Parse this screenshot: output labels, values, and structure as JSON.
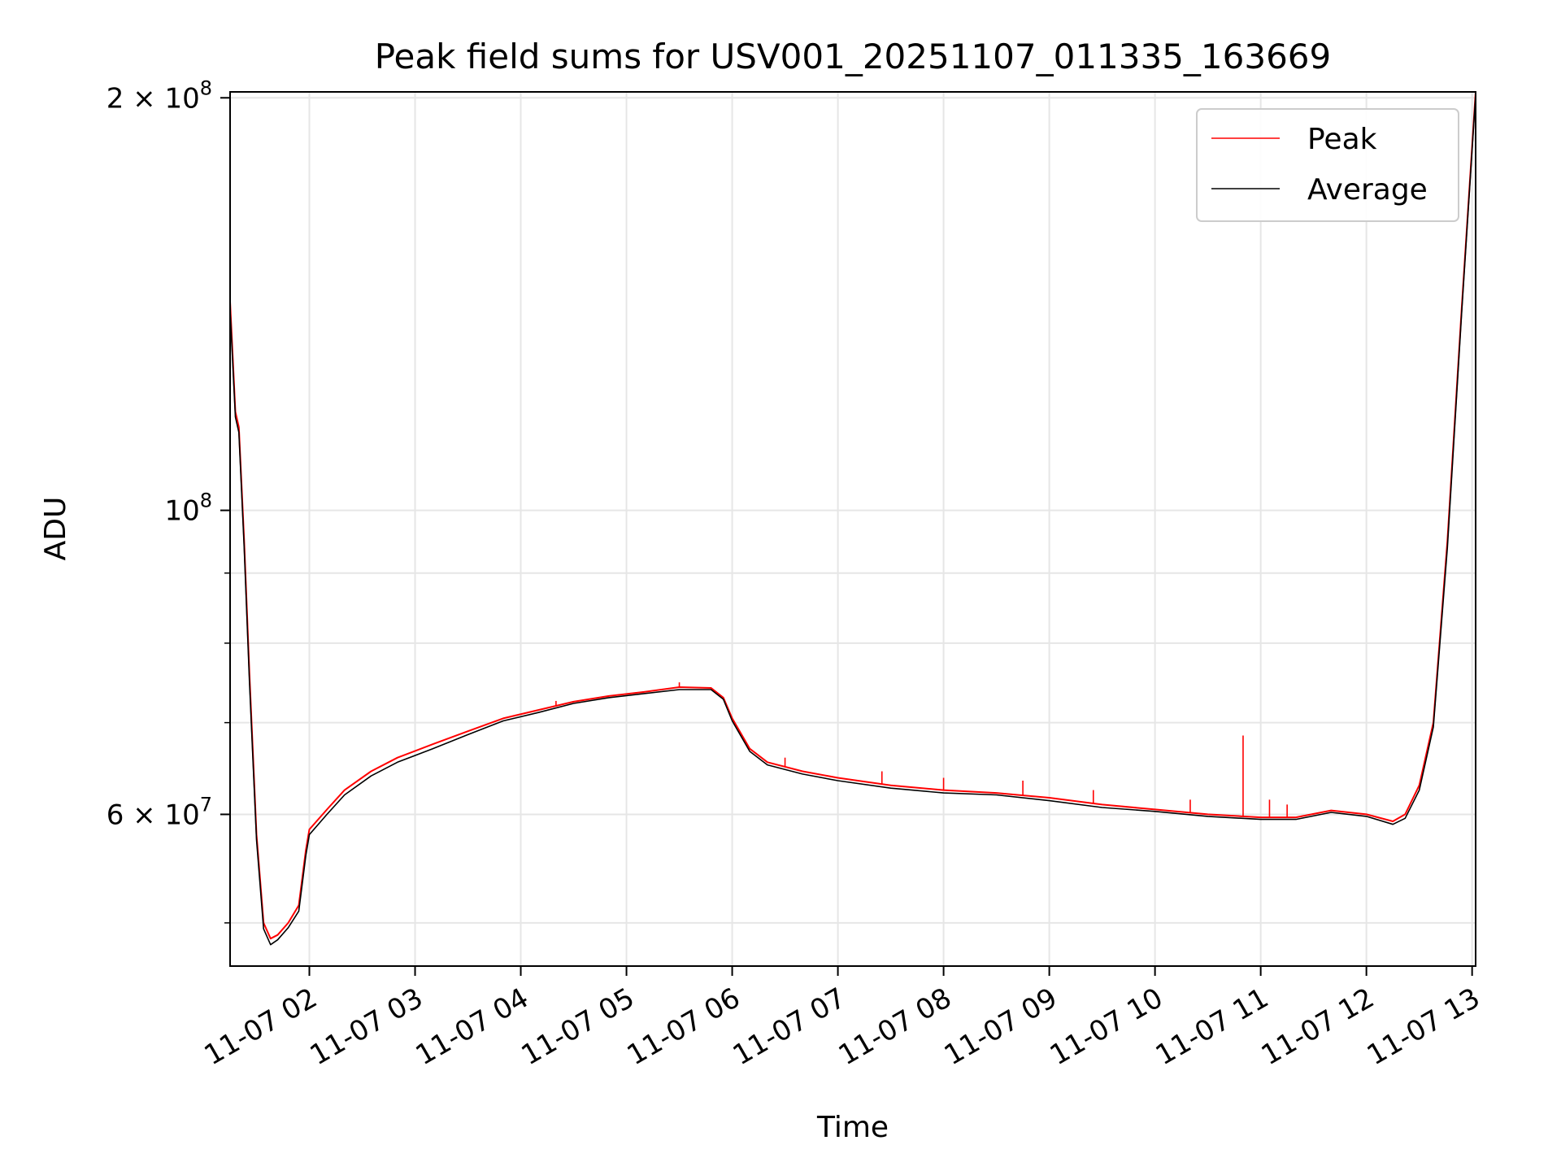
{
  "chart_data": {
    "type": "line",
    "title": "Peak field sums for USV001_20251107_011335_163669",
    "xlabel": "Time",
    "ylabel": "ADU",
    "yscale": "log",
    "grid": true,
    "legend_position": "top-right",
    "xlim": [
      "2025-11-07 01:15",
      "2025-11-07 13:02"
    ],
    "ylim": [
      46500000,
      202000000
    ],
    "x_ticks": [
      {
        "value": "2025-11-07 02:00",
        "label": "11-07 02"
      },
      {
        "value": "2025-11-07 03:00",
        "label": "11-07 03"
      },
      {
        "value": "2025-11-07 04:00",
        "label": "11-07 04"
      },
      {
        "value": "2025-11-07 05:00",
        "label": "11-07 05"
      },
      {
        "value": "2025-11-07 06:00",
        "label": "11-07 06"
      },
      {
        "value": "2025-11-07 07:00",
        "label": "11-07 07"
      },
      {
        "value": "2025-11-07 08:00",
        "label": "11-07 08"
      },
      {
        "value": "2025-11-07 09:00",
        "label": "11-07 09"
      },
      {
        "value": "2025-11-07 10:00",
        "label": "11-07 10"
      },
      {
        "value": "2025-11-07 11:00",
        "label": "11-07 11"
      },
      {
        "value": "2025-11-07 12:00",
        "label": "11-07 12"
      },
      {
        "value": "2025-11-07 13:00",
        "label": "11-07 13"
      }
    ],
    "y_major_ticks": [
      {
        "value": 60000000,
        "base": "6 × 10",
        "exp": "7"
      },
      {
        "value": 100000000,
        "base": "10",
        "exp": "8"
      },
      {
        "value": 200000000,
        "base": "2 × 10",
        "exp": "8"
      }
    ],
    "y_minor_ticks": [
      50000000,
      70000000,
      80000000,
      90000000
    ],
    "series": [
      {
        "name": "Peak",
        "color": "#ff0000",
        "x": [
          "2025-11-07 01:15",
          "2025-11-07 01:18",
          "2025-11-07 01:20",
          "2025-11-07 01:23",
          "2025-11-07 01:26",
          "2025-11-07 01:30",
          "2025-11-07 01:34",
          "2025-11-07 01:38",
          "2025-11-07 01:42",
          "2025-11-07 01:48",
          "2025-11-07 01:54",
          "2025-11-07 01:58",
          "2025-11-07 02:00",
          "2025-11-07 02:10",
          "2025-11-07 02:20",
          "2025-11-07 02:35",
          "2025-11-07 02:50",
          "2025-11-07 03:10",
          "2025-11-07 03:30",
          "2025-11-07 03:50",
          "2025-11-07 04:10",
          "2025-11-07 04:30",
          "2025-11-07 04:50",
          "2025-11-07 05:10",
          "2025-11-07 05:30",
          "2025-11-07 05:48",
          "2025-11-07 05:55",
          "2025-11-07 06:00",
          "2025-11-07 06:10",
          "2025-11-07 06:20",
          "2025-11-07 06:40",
          "2025-11-07 07:00",
          "2025-11-07 07:30",
          "2025-11-07 08:00",
          "2025-11-07 08:30",
          "2025-11-07 09:00",
          "2025-11-07 09:30",
          "2025-11-07 10:00",
          "2025-11-07 10:30",
          "2025-11-07 11:00",
          "2025-11-07 11:20",
          "2025-11-07 11:40",
          "2025-11-07 12:00",
          "2025-11-07 12:15",
          "2025-11-07 12:22",
          "2025-11-07 12:30",
          "2025-11-07 12:38",
          "2025-11-07 12:46",
          "2025-11-07 12:54",
          "2025-11-07 13:02"
        ],
        "values": [
          142000000,
          118000000,
          115000000,
          95000000,
          76000000,
          58000000,
          50000000,
          48700000,
          49000000,
          50000000,
          51500000,
          56500000,
          58500000,
          60500000,
          62500000,
          64500000,
          66000000,
          67500000,
          69000000,
          70500000,
          71500000,
          72500000,
          73200000,
          73700000,
          74300000,
          74200000,
          73000000,
          70500000,
          67000000,
          65500000,
          64500000,
          63800000,
          63000000,
          62500000,
          62200000,
          61700000,
          61000000,
          60500000,
          60000000,
          59700000,
          59700000,
          60400000,
          60000000,
          59300000,
          60000000,
          63000000,
          70000000,
          95000000,
          140000000,
          202000000
        ]
      },
      {
        "name": "Average",
        "color": "#000000",
        "x": [
          "2025-11-07 01:15",
          "2025-11-07 01:18",
          "2025-11-07 01:20",
          "2025-11-07 01:23",
          "2025-11-07 01:26",
          "2025-11-07 01:30",
          "2025-11-07 01:34",
          "2025-11-07 01:38",
          "2025-11-07 01:42",
          "2025-11-07 01:48",
          "2025-11-07 01:54",
          "2025-11-07 01:58",
          "2025-11-07 02:00",
          "2025-11-07 02:10",
          "2025-11-07 02:20",
          "2025-11-07 02:35",
          "2025-11-07 02:50",
          "2025-11-07 03:10",
          "2025-11-07 03:30",
          "2025-11-07 03:50",
          "2025-11-07 04:10",
          "2025-11-07 04:30",
          "2025-11-07 04:50",
          "2025-11-07 05:10",
          "2025-11-07 05:30",
          "2025-11-07 05:48",
          "2025-11-07 05:55",
          "2025-11-07 06:00",
          "2025-11-07 06:10",
          "2025-11-07 06:20",
          "2025-11-07 06:40",
          "2025-11-07 07:00",
          "2025-11-07 07:30",
          "2025-11-07 08:00",
          "2025-11-07 08:30",
          "2025-11-07 09:00",
          "2025-11-07 09:30",
          "2025-11-07 10:00",
          "2025-11-07 10:30",
          "2025-11-07 11:00",
          "2025-11-07 11:20",
          "2025-11-07 11:40",
          "2025-11-07 12:00",
          "2025-11-07 12:15",
          "2025-11-07 12:22",
          "2025-11-07 12:30",
          "2025-11-07 12:38",
          "2025-11-07 12:46",
          "2025-11-07 12:54",
          "2025-11-07 13:02"
        ],
        "values": [
          140000000,
          117000000,
          114000000,
          94000000,
          75000000,
          57500000,
          49500000,
          48200000,
          48600000,
          49600000,
          51000000,
          56000000,
          58000000,
          60000000,
          62000000,
          64000000,
          65500000,
          67000000,
          68600000,
          70200000,
          71200000,
          72300000,
          73000000,
          73500000,
          74000000,
          74000000,
          72800000,
          70200000,
          66700000,
          65200000,
          64200000,
          63500000,
          62700000,
          62200000,
          62000000,
          61400000,
          60700000,
          60300000,
          59800000,
          59500000,
          59500000,
          60200000,
          59800000,
          59000000,
          59600000,
          62500000,
          69500000,
          94000000,
          139000000,
          201000000
        ]
      }
    ],
    "peak_spikes": [
      {
        "x": "2025-11-07 10:50",
        "value": 68500000
      },
      {
        "x": "2025-11-07 05:30",
        "value": 74900000
      },
      {
        "x": "2025-11-07 04:20",
        "value": 72600000
      },
      {
        "x": "2025-11-07 06:30",
        "value": 66000000
      },
      {
        "x": "2025-11-07 07:25",
        "value": 64500000
      },
      {
        "x": "2025-11-07 08:00",
        "value": 63800000
      },
      {
        "x": "2025-11-07 08:45",
        "value": 63500000
      },
      {
        "x": "2025-11-07 09:25",
        "value": 62500000
      },
      {
        "x": "2025-11-07 10:20",
        "value": 61500000
      },
      {
        "x": "2025-11-07 11:05",
        "value": 61500000
      },
      {
        "x": "2025-11-07 11:15",
        "value": 61000000
      }
    ]
  }
}
